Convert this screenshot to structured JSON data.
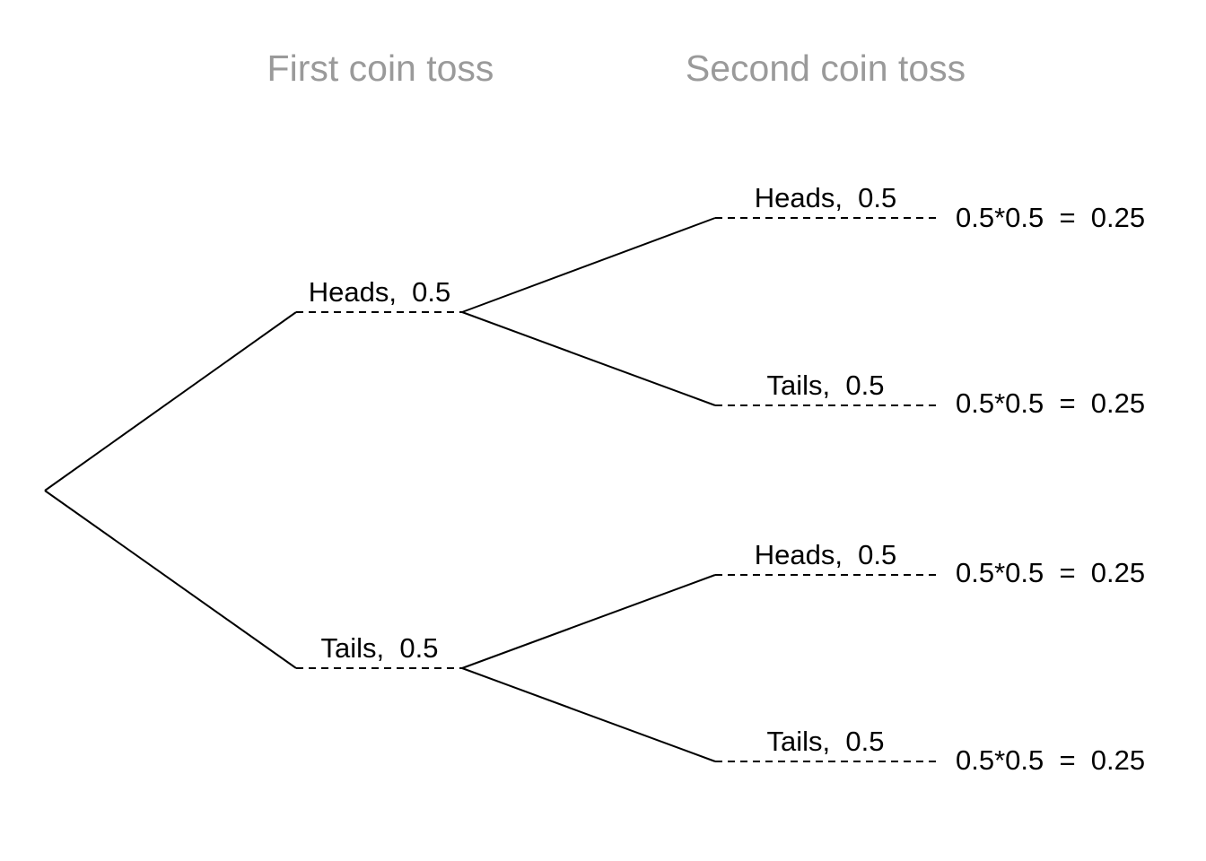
{
  "headers": {
    "first": "First coin toss",
    "second": "Second coin toss"
  },
  "first_toss": [
    {
      "label": "Heads,  0.5"
    },
    {
      "label": "Tails,  0.5"
    }
  ],
  "second_toss": [
    {
      "label": "Heads,  0.5",
      "outcome": "0.5*0.5  =  0.25"
    },
    {
      "label": "Tails,  0.5",
      "outcome": "0.5*0.5  =  0.25"
    },
    {
      "label": "Heads,  0.5",
      "outcome": "0.5*0.5  =  0.25"
    },
    {
      "label": "Tails,  0.5",
      "outcome": "0.5*0.5  =  0.25"
    }
  ]
}
